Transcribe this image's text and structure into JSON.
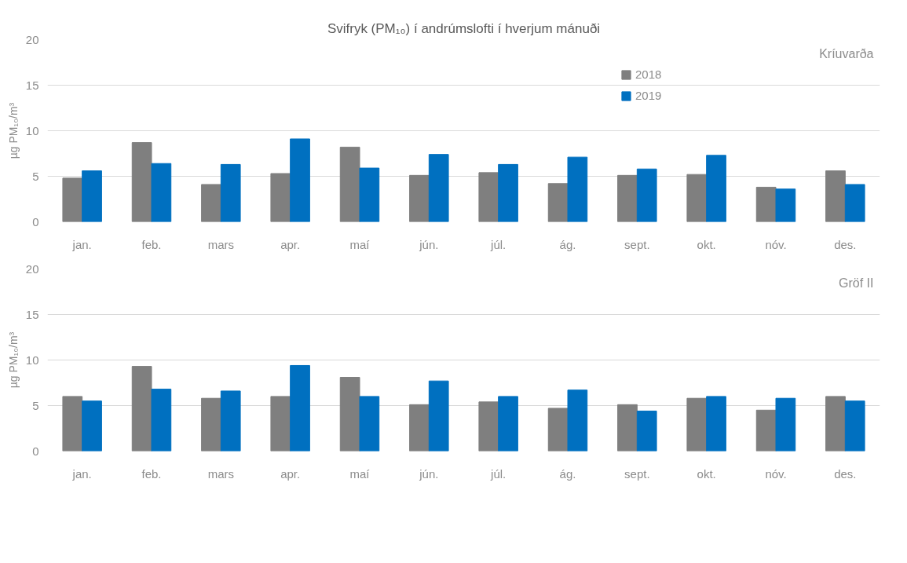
{
  "chart_data": [
    {
      "type": "bar",
      "title": "Svifryk (PM₁₀) í andrúmslofti í hverjum mánuði",
      "ylabel": "µg PM₁₀/m³",
      "annotations": [
        "Kríuvarða"
      ],
      "categories": [
        "jan.",
        "feb.",
        "mars",
        "apr.",
        "maí",
        "jún.",
        "júl.",
        "ág.",
        "sept.",
        "okt.",
        "nóv.",
        "des."
      ],
      "series": [
        {
          "name": "2018",
          "color": "#7f7f7f",
          "values": [
            4.8,
            8.7,
            4.1,
            5.3,
            8.2,
            5.1,
            5.4,
            4.2,
            5.1,
            5.2,
            3.8,
            5.6
          ]
        },
        {
          "name": "2019",
          "color": "#0070c0",
          "values": [
            5.6,
            6.4,
            6.3,
            9.1,
            5.9,
            7.4,
            6.3,
            7.1,
            5.8,
            7.3,
            3.6,
            4.1
          ]
        }
      ],
      "ylim": [
        0,
        20
      ],
      "yticks": [
        0,
        5,
        10,
        15,
        20
      ],
      "grid": "y",
      "legend": "top right"
    },
    {
      "type": "bar",
      "ylabel": "µg PM₁₀/m³",
      "annotations": [
        "Gröf II"
      ],
      "categories": [
        "jan.",
        "feb.",
        "mars",
        "apr.",
        "maí",
        "jún.",
        "júl.",
        "ág.",
        "sept.",
        "okt.",
        "nóv.",
        "des."
      ],
      "series": [
        {
          "color": "#7f7f7f",
          "values": [
            6.0,
            9.3,
            5.8,
            6.0,
            8.1,
            5.1,
            5.4,
            4.7,
            5.1,
            5.8,
            4.5,
            6.0
          ]
        },
        {
          "color": "#0070c0",
          "values": [
            5.5,
            6.8,
            6.6,
            9.4,
            6.0,
            7.7,
            6.0,
            6.7,
            4.4,
            6.0,
            5.8,
            5.5
          ]
        }
      ],
      "ylim": [
        0,
        20
      ],
      "yticks": [
        0,
        5,
        10,
        15,
        20
      ],
      "grid": "y"
    }
  ]
}
